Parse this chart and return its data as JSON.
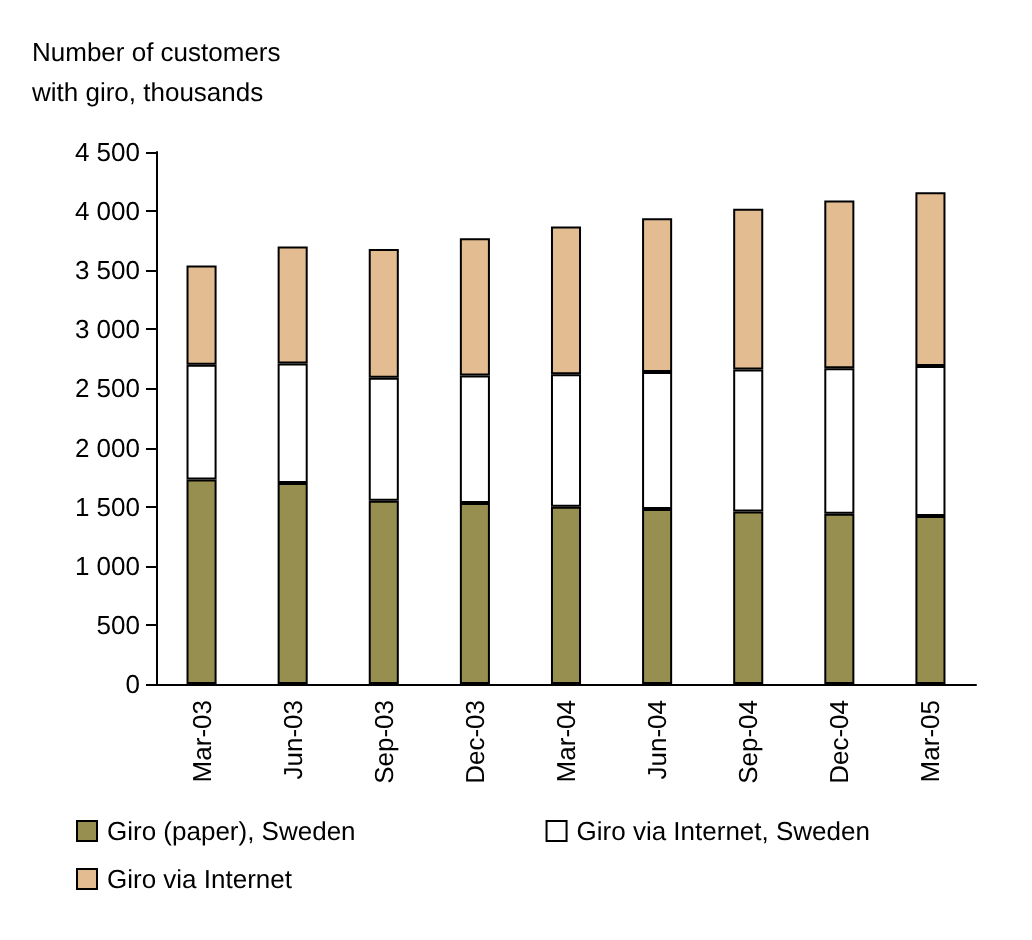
{
  "chart_data": {
    "type": "bar",
    "stacked": true,
    "ylabel": "Number of customers\nwith giro, thousands",
    "categories": [
      "Mar-03",
      "Jun-03",
      "Sep-03",
      "Dec-03",
      "Mar-04",
      "Jun-04",
      "Sep-04",
      "Dec-04",
      "Mar-05"
    ],
    "series": [
      {
        "name": "Giro (paper), Sweden",
        "color": "#978f4f",
        "values": [
          1730,
          1700,
          1550,
          1530,
          1500,
          1480,
          1460,
          1440,
          1420
        ]
      },
      {
        "name": "Giro via Internet, Sweden",
        "color": "#ffffff",
        "values": [
          970,
          1010,
          1040,
          1080,
          1120,
          1160,
          1200,
          1230,
          1270
        ]
      },
      {
        "name": "Giro via Internet",
        "color": "#e3bc91",
        "values": [
          840,
          990,
          1090,
          1160,
          1250,
          1300,
          1360,
          1420,
          1470
        ]
      }
    ],
    "ylim": [
      0,
      4500
    ],
    "yticks": [
      0,
      500,
      {
        "value": 1000,
        "label": "1 000"
      },
      {
        "value": 1500,
        "label": "1 500"
      },
      {
        "value": 2000,
        "label": "2 000"
      },
      {
        "value": 2500,
        "label": "2 500"
      },
      {
        "value": 3000,
        "label": "3 000"
      },
      {
        "value": 3500,
        "label": "3 500"
      },
      {
        "value": 4000,
        "label": "4 000"
      },
      {
        "value": 4500,
        "label": "4 500"
      }
    ],
    "grid": false,
    "legend": "bottom"
  }
}
